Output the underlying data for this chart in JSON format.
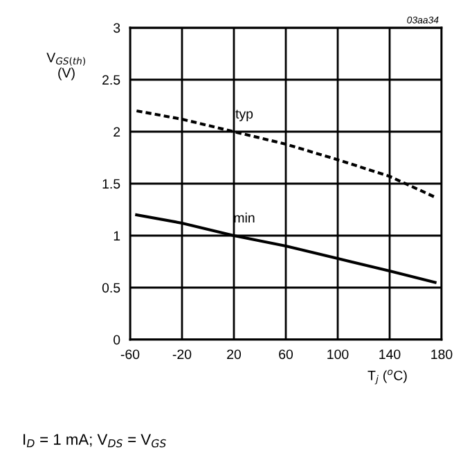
{
  "chart_data": {
    "type": "line",
    "ylabel": "V$_{GS(th)}$\n(V)",
    "xlabel": "T$_{j}$ ($^{o}$C)",
    "xlim": [
      -60,
      180
    ],
    "xticks": [
      -60,
      -20,
      20,
      60,
      100,
      140,
      180
    ],
    "ylim": [
      0,
      3
    ],
    "yticks": [
      0,
      0.5,
      1,
      1.5,
      2,
      2.5,
      3
    ],
    "grid": true,
    "legend": false,
    "marker": "none",
    "series": [
      {
        "name": "typ",
        "color": "#000000",
        "line_style": "dashed",
        "x": [
          -55,
          -20,
          20,
          60,
          100,
          140,
          175
        ],
        "values": [
          2.2,
          2.12,
          2.0,
          1.88,
          1.73,
          1.57,
          1.37
        ]
      },
      {
        "name": "min",
        "color": "#000000",
        "line_style": "solid",
        "x": [
          -55,
          -20,
          20,
          60,
          100,
          140,
          175
        ],
        "values": [
          1.2,
          1.12,
          1.0,
          0.9,
          0.78,
          0.66,
          0.55
        ]
      }
    ],
    "annotations": [
      "03aa34",
      "I$_{D}$ = 1 mA; V$_{DS}$ = V$_{GS}$"
    ]
  }
}
